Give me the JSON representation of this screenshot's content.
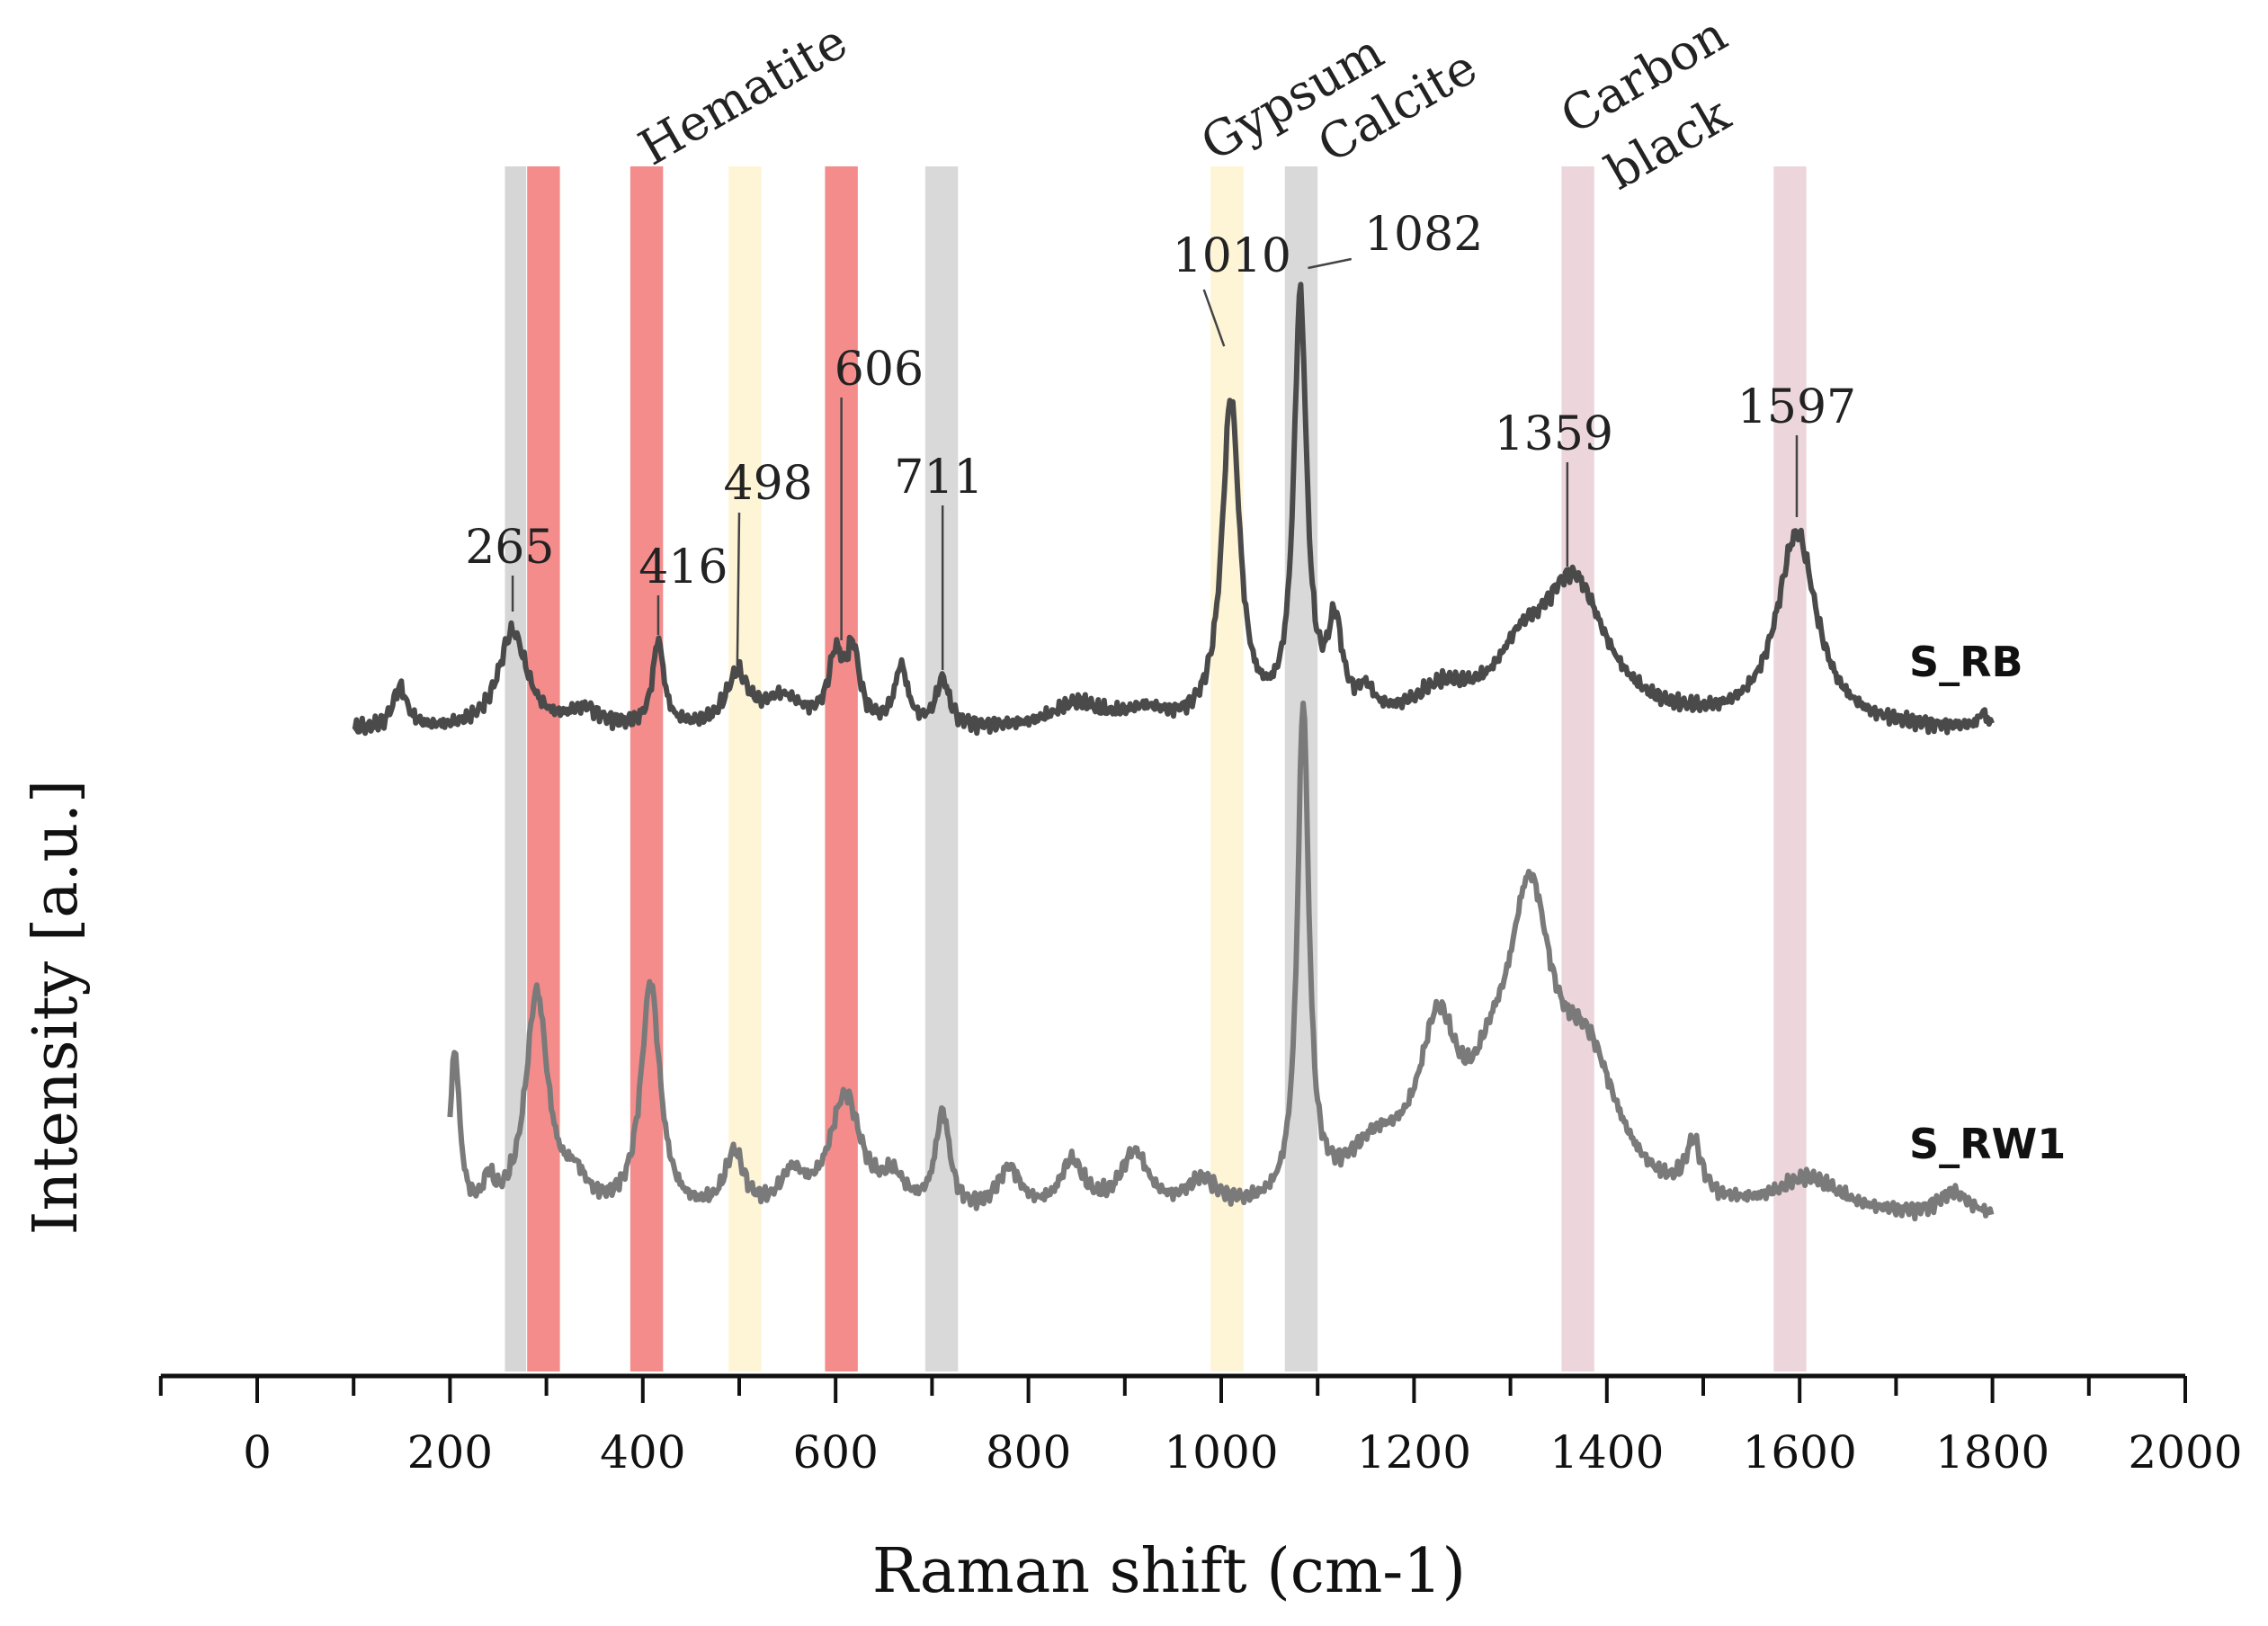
{
  "chart_data": {
    "type": "line",
    "title": "",
    "xlabel": "Raman shift (cm-1)",
    "ylabel": "Intensity [a.u.]",
    "xlim": [
      -100,
      2000
    ],
    "xticks": [
      0,
      200,
      400,
      600,
      800,
      1000,
      1200,
      1400,
      1600,
      1800,
      2000
    ],
    "minor_step": 100,
    "grid": false,
    "series": [
      {
        "name": "S_RB",
        "color": "#4a4a4a",
        "x_range": [
          100,
          1800
        ],
        "baseline": 0.05,
        "peaks": [
          {
            "x": 148,
            "h": 0.14,
            "w": 9
          },
          {
            "x": 265,
            "h": 0.33,
            "w": 18
          },
          {
            "x": 340,
            "h": 0.06,
            "w": 20
          },
          {
            "x": 416,
            "h": 0.29,
            "w": 7
          },
          {
            "x": 498,
            "h": 0.17,
            "w": 14
          },
          {
            "x": 545,
            "h": 0.1,
            "w": 25
          },
          {
            "x": 600,
            "h": 0.22,
            "w": 9
          },
          {
            "x": 618,
            "h": 0.24,
            "w": 8
          },
          {
            "x": 668,
            "h": 0.2,
            "w": 8
          },
          {
            "x": 711,
            "h": 0.16,
            "w": 8
          },
          {
            "x": 850,
            "h": 0.08,
            "w": 30
          },
          {
            "x": 920,
            "h": 0.05,
            "w": 25
          },
          {
            "x": 1010,
            "h": 1.09,
            "w": 11
          },
          {
            "x": 1082,
            "h": 1.42,
            "w": 8
          },
          {
            "x": 1118,
            "h": 0.3,
            "w": 9
          },
          {
            "x": 1150,
            "h": 0.08,
            "w": 10
          },
          {
            "x": 1230,
            "h": 0.1,
            "w": 35
          },
          {
            "x": 1310,
            "h": 0.16,
            "w": 30
          },
          {
            "x": 1365,
            "h": 0.48,
            "w": 42
          },
          {
            "x": 1597,
            "h": 0.65,
            "w": 25
          },
          {
            "x": 1790,
            "h": 0.05,
            "w": 5
          }
        ],
        "annotations": [
          {
            "label": "265",
            "x": 265
          },
          {
            "label": "416",
            "x": 416
          },
          {
            "label": "498",
            "x": 498
          },
          {
            "label": "606",
            "x": 606
          },
          {
            "label": "711",
            "x": 711
          },
          {
            "label": "1010",
            "x": 1010
          },
          {
            "label": "1082",
            "x": 1082
          },
          {
            "label": "1359",
            "x": 1359
          },
          {
            "label": "1597",
            "x": 1597
          }
        ]
      },
      {
        "name": "S_RW1",
        "color": "#7a7a7a",
        "x_range": [
          200,
          1800
        ],
        "baseline": 0.05,
        "peaks": [
          {
            "x": 205,
            "h": 0.55,
            "w": 6
          },
          {
            "x": 240,
            "h": 0.1,
            "w": 6
          },
          {
            "x": 290,
            "h": 0.75,
            "w": 14
          },
          {
            "x": 330,
            "h": 0.1,
            "w": 15
          },
          {
            "x": 408,
            "h": 0.78,
            "w": 12
          },
          {
            "x": 495,
            "h": 0.2,
            "w": 12
          },
          {
            "x": 555,
            "h": 0.12,
            "w": 15
          },
          {
            "x": 610,
            "h": 0.4,
            "w": 20
          },
          {
            "x": 660,
            "h": 0.1,
            "w": 15
          },
          {
            "x": 711,
            "h": 0.33,
            "w": 9
          },
          {
            "x": 780,
            "h": 0.15,
            "w": 15
          },
          {
            "x": 845,
            "h": 0.17,
            "w": 15
          },
          {
            "x": 910,
            "h": 0.2,
            "w": 18
          },
          {
            "x": 980,
            "h": 0.1,
            "w": 20
          },
          {
            "x": 1085,
            "h": 1.67,
            "w": 7
          },
          {
            "x": 1160,
            "h": 0.18,
            "w": 40
          },
          {
            "x": 1225,
            "h": 0.53,
            "w": 25
          },
          {
            "x": 1280,
            "h": 0.22,
            "w": 25
          },
          {
            "x": 1320,
            "h": 0.92,
            "w": 28
          },
          {
            "x": 1380,
            "h": 0.45,
            "w": 40
          },
          {
            "x": 1490,
            "h": 0.18,
            "w": 10
          },
          {
            "x": 1610,
            "h": 0.12,
            "w": 40
          },
          {
            "x": 1760,
            "h": 0.08,
            "w": 20
          }
        ]
      }
    ],
    "bands": [
      {
        "center": 268,
        "width": 22,
        "color": "#c8c8c8"
      },
      {
        "center": 297,
        "width": 34,
        "color": "#f26565"
      },
      {
        "center": 404,
        "width": 34,
        "color": "#f26565"
      },
      {
        "center": 506,
        "width": 34,
        "color": "#fdf0c8"
      },
      {
        "center": 606,
        "width": 34,
        "color": "#f26565"
      },
      {
        "center": 710,
        "width": 34,
        "color": "#cccccc"
      },
      {
        "center": 1006,
        "width": 34,
        "color": "#fdf0c8"
      },
      {
        "center": 1083,
        "width": 34,
        "color": "#cccccc"
      },
      {
        "center": 1370,
        "width": 34,
        "color": "#e6c8d0"
      },
      {
        "center": 1590,
        "width": 34,
        "color": "#e6c8d0"
      }
    ],
    "mineral_labels": [
      "Hematite",
      "Gypsum",
      "Calcite",
      "Carbon",
      "black"
    ]
  }
}
